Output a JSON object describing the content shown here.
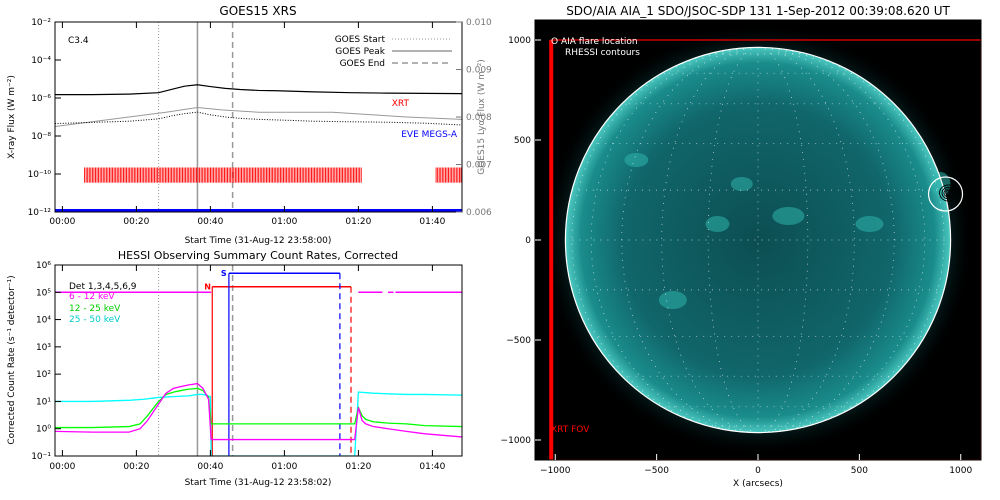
{
  "chart_data": [
    {
      "type": "line",
      "title": "GOES15 XRS",
      "xlabel": "Start Time (31-Aug-12 23:58:00)",
      "ylabel": "X-ray Flux (W m⁻²)",
      "y2label": "GOES15 Lyα Flux (W m⁻²)",
      "xlim": [
        0,
        110
      ],
      "ylim": [
        1e-12,
        0.01
      ],
      "y2lim": [
        0.006,
        0.01
      ],
      "yscale": "log",
      "x_tick_values": [
        2,
        22,
        42,
        62,
        82,
        102
      ],
      "x_tick_labels": [
        "00:00",
        "00:20",
        "00:40",
        "01:00",
        "01:20",
        "01:40"
      ],
      "y_tick_labels": [
        "10⁻¹²",
        "10⁻¹⁰",
        "10⁻⁸",
        "10⁻⁶",
        "10⁻⁴",
        "10⁻²"
      ],
      "y2_tick_labels": [
        "0.006",
        "0.007",
        "0.008",
        "0.009",
        "0.010"
      ],
      "flare_class": "C3.4",
      "goes_start_label": "GOES Start",
      "goes_peak_label": "GOES Peak",
      "goes_end_label": "GOES End",
      "xrt_label": "XRT",
      "eve_label": "EVE MEGS-A",
      "colors": {
        "xrt": "#ff0000",
        "eve": "#0000ff"
      },
      "event_lines": {
        "start": 28,
        "peak": 38.5,
        "end": 48
      },
      "series": [
        {
          "x": [
            0,
            10,
            20,
            28,
            32,
            35,
            38.5,
            42,
            46,
            50,
            55,
            60,
            70,
            80,
            90,
            100,
            110
          ],
          "values": [
            1.5e-06,
            1.5e-06,
            1.6e-06,
            1.9e-06,
            3e-06,
            4.2e-06,
            5e-06,
            4e-06,
            3.2e-06,
            2.8e-06,
            2.5e-06,
            2.4e-06,
            2.1e-06,
            1.9e-06,
            1.8e-06,
            1.75e-06,
            1.7e-06
          ]
        },
        {
          "x": [
            0,
            10,
            20,
            28,
            32,
            35,
            38.5,
            42,
            46,
            50,
            55,
            60,
            70,
            80,
            90,
            100,
            110
          ],
          "values": [
            4.5e-08,
            5.2e-08,
            6e-08,
            8e-08,
            1.2e-07,
            1.5e-07,
            1.8e-07,
            1.3e-07,
            1e-07,
            8.5e-08,
            7.5e-08,
            7e-08,
            6e-08,
            5.6e-08,
            5.3e-08,
            4.7e-08,
            3.8e-08
          ]
        },
        {
          "x": [
            0,
            10,
            20,
            30,
            38.5,
            45,
            55,
            65,
            75,
            85,
            95,
            110
          ],
          "values": [
            0.0078,
            0.0079,
            0.008,
            0.0081,
            0.0082,
            0.00815,
            0.0081,
            0.0081,
            0.0081,
            0.00805,
            0.008,
            0.00795
          ]
        },
        {
          "x": [
            0,
            110
          ],
          "values": [
            1.2e-12,
            1.2e-12
          ]
        }
      ],
      "xrt_coverage": [
        [
          8,
          83
        ],
        [
          103,
          110
        ]
      ]
    },
    {
      "type": "line",
      "title": "HESSI Observing Summary Count Rates, Corrected",
      "xlabel": "Start Time (31-Aug-12 23:58:02)",
      "ylabel": "Corrected Count Rate (s⁻¹ detector⁻¹)",
      "xlim": [
        0,
        110
      ],
      "ylim": [
        0.1,
        1000000.0
      ],
      "yscale": "log",
      "x_tick_values": [
        2,
        22,
        42,
        62,
        82,
        102
      ],
      "x_tick_labels": [
        "00:00",
        "00:20",
        "00:40",
        "01:00",
        "01:20",
        "01:40"
      ],
      "y_tick_labels": [
        "10⁻¹",
        "10⁰",
        "10¹",
        "10²",
        "10³",
        "10⁴",
        "10⁵",
        "10⁶"
      ],
      "legend": [
        "Det 1,3,4,5,6,9",
        "6 - 12 keV",
        "12 - 25 keV",
        "25 - 50 keV"
      ],
      "legend_colors": [
        "#000000",
        "#ff00ff",
        "#00ff00",
        "#00ffff"
      ],
      "night_marker": "N",
      "saa_marker": "S",
      "event_lines": {
        "start": 28,
        "peak": 38.5,
        "end": 48
      },
      "night_interval": [
        42.5,
        80
      ],
      "saa_interval": [
        47,
        77
      ],
      "attenuator_level": 100000,
      "series": [
        {
          "x": [
            0,
            10,
            20,
            23,
            25,
            28,
            30,
            32,
            34,
            36,
            38.5,
            40,
            41.5,
            42.2,
            81,
            82,
            83,
            84,
            86,
            90,
            95,
            100,
            110
          ],
          "values": [
            0.8,
            0.75,
            0.75,
            1.0,
            2.0,
            8,
            20,
            30,
            35,
            40,
            45,
            30,
            12,
            0.4,
            0.4,
            6,
            2,
            1.5,
            1.2,
            1.0,
            0.8,
            0.65,
            0.5
          ]
        },
        {
          "x": [
            0,
            10,
            20,
            23,
            25,
            28,
            30,
            32,
            34,
            36,
            38.5,
            40,
            41.5,
            42.2,
            81,
            82,
            83,
            84,
            86,
            90,
            95,
            100,
            110
          ],
          "values": [
            1.1,
            1.1,
            1.2,
            1.5,
            3.0,
            10,
            18,
            22,
            25,
            28,
            30,
            25,
            14,
            1.5,
            1.5,
            6,
            3,
            2.2,
            1.8,
            1.6,
            1.5,
            1.3,
            1.2
          ]
        },
        {
          "x": [
            0,
            10,
            20,
            24,
            28,
            32,
            36,
            38.5,
            40,
            42,
            42.2,
            81,
            82,
            86,
            90,
            95,
            100,
            110
          ],
          "values": [
            10,
            10,
            11,
            12,
            14,
            15,
            16,
            18,
            18,
            15,
            0.1,
            0.1,
            22,
            20,
            19,
            18,
            18,
            17
          ]
        },
        {
          "x": [
            0,
            42.2,
            81,
            92,
            96,
            110
          ],
          "values": [
            100000,
            100000,
            100000,
            100000,
            100000,
            100000
          ]
        }
      ]
    },
    {
      "type": "scatter",
      "title": "SDO/AIA AIA_1 SDO/JSOC-SDP 131   1-Sep-2012 00:39:08.620 UT",
      "xlabel": "X (arcsecs)",
      "ylabel": "",
      "xlim": [
        -1100,
        1100
      ],
      "ylim": [
        -1100,
        1100
      ],
      "x_tick_values": [
        -1000,
        -500,
        0,
        500,
        1000
      ],
      "x_tick_labels": [
        "−1000",
        "−500",
        "0",
        "500",
        "1000"
      ],
      "y_tick_values": [
        1000,
        500,
        0,
        -500,
        -1000
      ],
      "y_tick_labels": [
        "1000",
        "500",
        "0",
        "−500",
        "−1000"
      ],
      "legend": [
        "O AIA flare location",
        "RHESSI contours"
      ],
      "xrt_fov_label": "XRT FOV",
      "colors": {
        "disk": "#1a9a96",
        "limb": "#ffffff",
        "xrt_fov": "#ff0000",
        "background": "#000000"
      },
      "solar_radius": 950,
      "flare_location": {
        "x": 925,
        "y": 230
      },
      "xrt_fov": {
        "x_min": -1020,
        "x_max": 1100,
        "y_min": -1100,
        "y_max": 1000
      }
    }
  ]
}
